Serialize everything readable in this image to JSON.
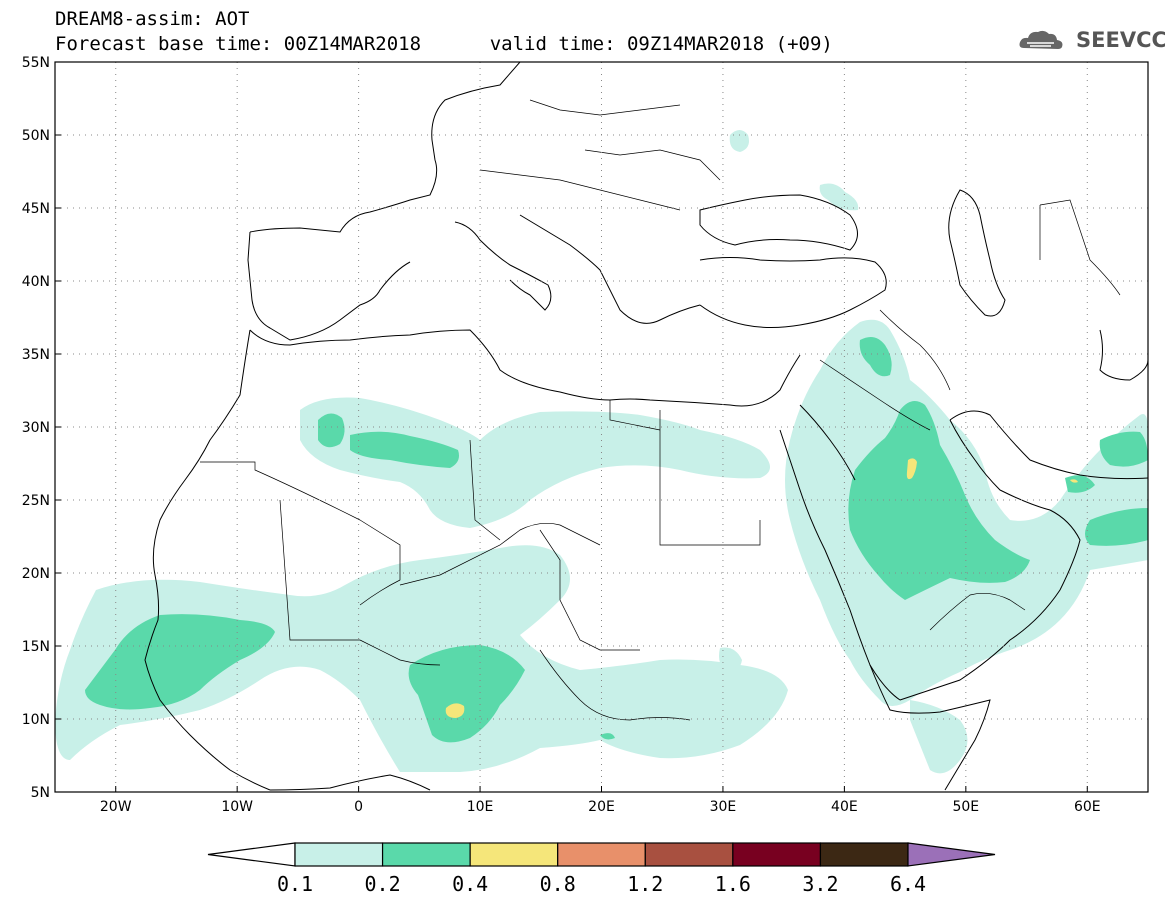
{
  "title": {
    "line1": "DREAM8-assim: AOT",
    "line2_left": "Forecast base time: 00Z14MAR2018",
    "line2_right": "valid time: 09Z14MAR2018 (+09)"
  },
  "logo": {
    "text": "SEEVCCC",
    "icon": "cloud-icon"
  },
  "axes": {
    "x_ticks": [
      {
        "label": "20W",
        "lon": -20
      },
      {
        "label": "10W",
        "lon": -10
      },
      {
        "label": "0",
        "lon": 0
      },
      {
        "label": "10E",
        "lon": 10
      },
      {
        "label": "20E",
        "lon": 20
      },
      {
        "label": "30E",
        "lon": 30
      },
      {
        "label": "40E",
        "lon": 40
      },
      {
        "label": "50E",
        "lon": 50
      },
      {
        "label": "60E",
        "lon": 60
      }
    ],
    "y_ticks": [
      {
        "label": "55N",
        "lat": 55
      },
      {
        "label": "50N",
        "lat": 50
      },
      {
        "label": "45N",
        "lat": 45
      },
      {
        "label": "40N",
        "lat": 40
      },
      {
        "label": "35N",
        "lat": 35
      },
      {
        "label": "30N",
        "lat": 30
      },
      {
        "label": "25N",
        "lat": 25
      },
      {
        "label": "20N",
        "lat": 20
      },
      {
        "label": "15N",
        "lat": 15
      },
      {
        "label": "10N",
        "lat": 10
      },
      {
        "label": "5N",
        "lat": 5
      }
    ],
    "lon_range": [
      -25,
      65
    ],
    "lat_range": [
      5,
      55
    ],
    "grid": "dotted"
  },
  "colorbar": {
    "colors": [
      "#ffffff",
      "#c8f0e8",
      "#5ad9aa",
      "#f5e67a",
      "#e8906a",
      "#a85040",
      "#780020",
      "#3c2814",
      "#9b70b8"
    ],
    "labels": [
      "0.1",
      "0.2",
      "0.4",
      "0.8",
      "1.2",
      "1.6",
      "3.2",
      "6.4"
    ]
  }
}
